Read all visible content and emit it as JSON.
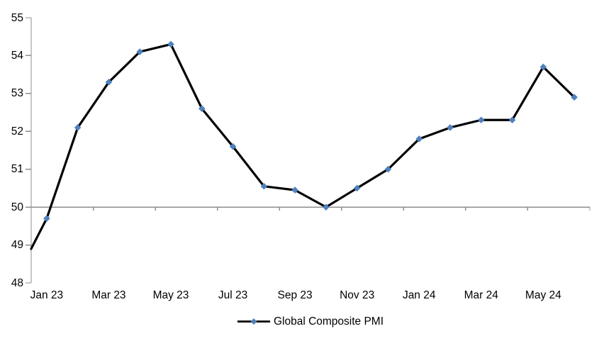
{
  "chart_data": {
    "type": "line",
    "title": "",
    "categories": [
      "Jan 23",
      "Feb 23",
      "Mar 23",
      "Apr 23",
      "May 23",
      "Jun 23",
      "Jul 23",
      "Aug 23",
      "Sep 23",
      "Oct 23",
      "Nov 23",
      "Dec 23",
      "Jan 24",
      "Feb 24",
      "Mar 24",
      "Apr 24",
      "May 24",
      "Jun 24"
    ],
    "series": [
      {
        "name": "Global Composite PMI",
        "values": [
          49.7,
          52.1,
          53.3,
          54.1,
          54.3,
          52.6,
          51.6,
          50.55,
          50.45,
          50.0,
          50.5,
          51.0,
          51.8,
          52.1,
          52.3,
          52.3,
          53.7,
          52.9
        ],
        "left_edge_entry_value": 48.9
      }
    ],
    "x_axis": {
      "visible_labels": [
        "Jan 23",
        "Mar 23",
        "May 23",
        "Jul 23",
        "Sep 23",
        "Nov 23",
        "Jan 24",
        "Mar 24",
        "May 24"
      ],
      "label_interval": 2
    },
    "y_axis": {
      "min": 48,
      "max": 55,
      "tick_step": 1,
      "tick_labels": [
        "48",
        "49",
        "50",
        "51",
        "52",
        "53",
        "54",
        "55"
      ]
    },
    "reference_line_value": 50,
    "grid": "off",
    "legend": {
      "label": "Global Composite PMI",
      "position": "bottom-center"
    },
    "style": {
      "line_color": "#000000",
      "marker_shape": "diamond",
      "marker_color": "#4F81BD",
      "axis_color": "#8E8E8E",
      "text_color": "#000000",
      "background": "#FFFFFF"
    }
  }
}
